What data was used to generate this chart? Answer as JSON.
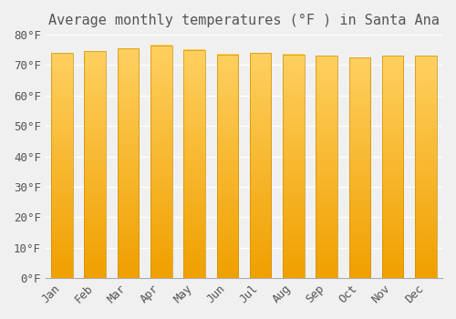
{
  "title": "Average monthly temperatures (°F ) in Santa Ana",
  "months": [
    "Jan",
    "Feb",
    "Mar",
    "Apr",
    "May",
    "Jun",
    "Jul",
    "Aug",
    "Sep",
    "Oct",
    "Nov",
    "Dec"
  ],
  "temperatures": [
    74,
    74.5,
    75.5,
    76.5,
    75,
    73.5,
    74,
    73.5,
    73,
    72.5,
    73,
    73
  ],
  "ylim": [
    0,
    80
  ],
  "yticks": [
    0,
    10,
    20,
    30,
    40,
    50,
    60,
    70,
    80
  ],
  "bar_color_bottom": "#F0A000",
  "bar_color_top": "#FFD060",
  "bar_edge_color": "#D09000",
  "background_color": "#F0F0F0",
  "grid_color": "#FFFFFF",
  "text_color": "#555555",
  "title_fontsize": 11,
  "tick_fontsize": 9,
  "bar_width": 0.65
}
